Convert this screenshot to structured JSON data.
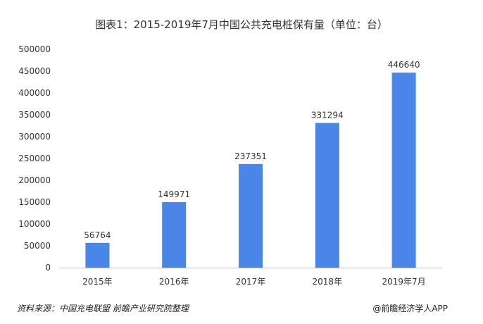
{
  "footer": {
    "source": "资料来源：中国充电联盟 前瞻产业研究院整理",
    "credit": "@前瞻经济学人APP"
  },
  "colors": {
    "bar": "#4A86E8",
    "axis": "#bfbfbf"
  },
  "chart_data": {
    "type": "bar",
    "title": "图表1：2015-2019年7月中国公共充电桩保有量（单位：台）",
    "categories": [
      "2015年",
      "2016年",
      "2017年",
      "2018年",
      "2019年7月"
    ],
    "values": [
      56764,
      149971,
      237351,
      331294,
      446640
    ],
    "data_labels": [
      "56764",
      "149971",
      "237351",
      "331294",
      "446640"
    ],
    "xlabel": "",
    "ylabel": "",
    "ylim": [
      0,
      500000
    ],
    "yticks": [
      "0",
      "50000",
      "100000",
      "150000",
      "200000",
      "250000",
      "300000",
      "350000",
      "400000",
      "450000",
      "500000"
    ],
    "grid": false,
    "legend": "none"
  }
}
